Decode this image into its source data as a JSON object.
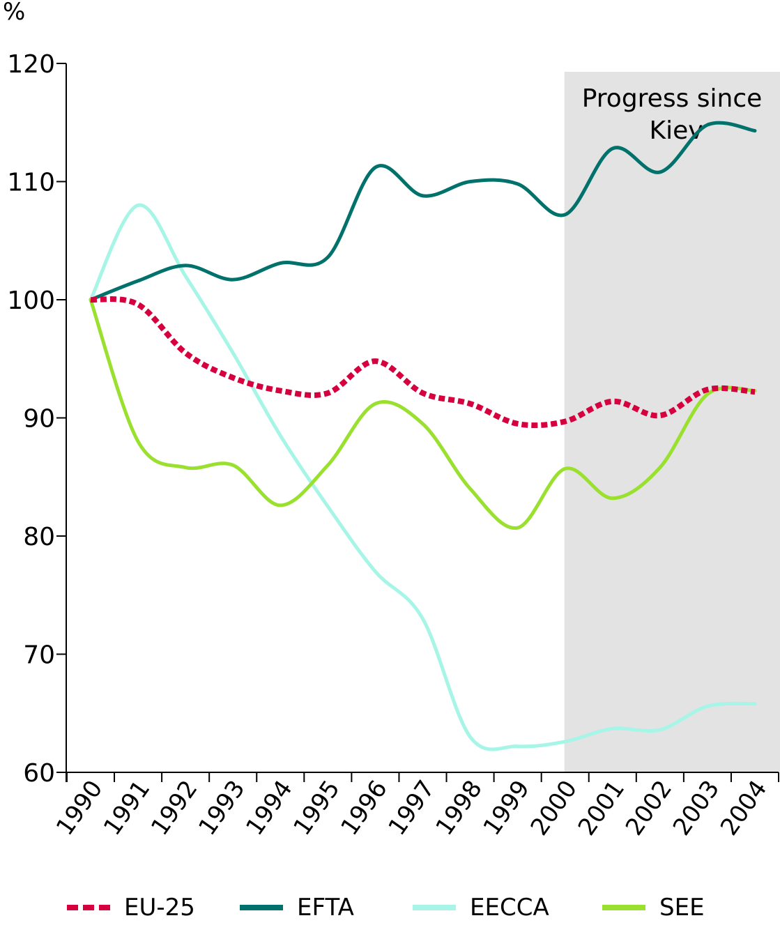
{
  "chart_data": {
    "type": "line",
    "ylabel": "%",
    "ylim": [
      60,
      120
    ],
    "yticks": [
      60,
      70,
      80,
      90,
      100,
      110,
      120
    ],
    "x": [
      "1990",
      "1991",
      "1992",
      "1993",
      "1994",
      "1995",
      "1996",
      "1997",
      "1998",
      "1999",
      "2000",
      "2001",
      "2002",
      "2003",
      "2004"
    ],
    "shaded_region": {
      "from": "2000",
      "to": "2004",
      "label": "Progress since Kiev",
      "color": "#e3e3e3"
    },
    "series": [
      {
        "name": "EU-25",
        "color": "#d6003f",
        "style": "dashed",
        "values": [
          100,
          99.6,
          95.5,
          93.4,
          92.3,
          92.1,
          94.8,
          92.1,
          91.2,
          89.5,
          89.7,
          91.4,
          90.2,
          92.4,
          92.2
        ]
      },
      {
        "name": "EFTA",
        "color": "#00716b",
        "style": "solid",
        "values": [
          100,
          101.6,
          102.9,
          101.7,
          103.1,
          103.6,
          111.2,
          108.8,
          110.0,
          109.8,
          107.2,
          112.8,
          110.8,
          114.8,
          114.3
        ]
      },
      {
        "name": "EECCA",
        "color": "#a6f5e6",
        "style": "solid",
        "values": [
          100,
          108.0,
          102.0,
          95.5,
          88.5,
          82.5,
          77.0,
          73.0,
          63.0,
          62.2,
          62.6,
          63.7,
          63.6,
          65.6,
          65.8
        ]
      },
      {
        "name": "SEE",
        "color": "#9ae02e",
        "style": "solid",
        "values": [
          100,
          88.0,
          85.8,
          86.0,
          82.6,
          86.0,
          91.2,
          89.5,
          84.0,
          80.7,
          85.7,
          83.2,
          85.8,
          92.0,
          92.3
        ]
      }
    ]
  }
}
